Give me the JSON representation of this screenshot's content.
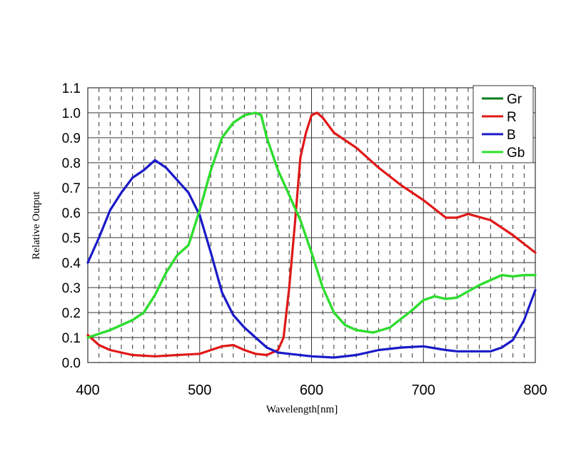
{
  "chart_data": {
    "type": "line",
    "title": "",
    "xlabel": "Wavelength[nm]",
    "ylabel": "Relative Output",
    "xlim": [
      400,
      800
    ],
    "ylim": [
      0,
      1.1
    ],
    "xticks": [
      "400",
      "500",
      "600",
      "700",
      "800"
    ],
    "yticks": [
      "0.0",
      "0.1",
      "0.2",
      "0.3",
      "0.4",
      "0.5",
      "0.6",
      "0.7",
      "0.8",
      "0.9",
      "1.0",
      "1.1"
    ],
    "grid": true,
    "legend_position": "top-right",
    "series": [
      {
        "name": "Gr",
        "color": "#0a7a1a",
        "x": [
          400,
          420,
          440,
          450,
          460,
          470,
          480,
          490,
          500,
          510,
          520,
          530,
          540,
          550,
          555,
          560,
          570,
          580,
          590,
          600,
          610,
          620,
          630,
          640,
          655,
          670,
          690,
          700,
          710,
          720,
          730,
          750,
          770,
          780,
          790,
          800
        ],
        "y": [
          0.1,
          0.13,
          0.17,
          0.2,
          0.27,
          0.36,
          0.43,
          0.47,
          0.61,
          0.77,
          0.9,
          0.96,
          0.99,
          1.0,
          0.99,
          0.9,
          0.77,
          0.67,
          0.57,
          0.44,
          0.3,
          0.2,
          0.15,
          0.13,
          0.12,
          0.14,
          0.21,
          0.25,
          0.265,
          0.255,
          0.26,
          0.31,
          0.35,
          0.345,
          0.35,
          0.35
        ]
      },
      {
        "name": "R",
        "color": "#e01818",
        "x": [
          400,
          410,
          420,
          440,
          460,
          480,
          500,
          510,
          520,
          530,
          540,
          550,
          560,
          570,
          575,
          580,
          585,
          590,
          595,
          600,
          605,
          610,
          620,
          640,
          660,
          680,
          700,
          720,
          730,
          740,
          760,
          780,
          800
        ],
        "y": [
          0.11,
          0.07,
          0.05,
          0.03,
          0.025,
          0.03,
          0.035,
          0.05,
          0.065,
          0.07,
          0.05,
          0.035,
          0.03,
          0.05,
          0.1,
          0.3,
          0.55,
          0.82,
          0.92,
          0.99,
          1.0,
          0.98,
          0.92,
          0.86,
          0.78,
          0.71,
          0.65,
          0.58,
          0.58,
          0.595,
          0.57,
          0.51,
          0.44
        ]
      },
      {
        "name": "B",
        "color": "#1a1ac8",
        "x": [
          400,
          410,
          420,
          430,
          440,
          450,
          460,
          470,
          480,
          490,
          500,
          510,
          520,
          530,
          540,
          550,
          560,
          570,
          580,
          600,
          620,
          640,
          660,
          680,
          700,
          720,
          730,
          760,
          770,
          780,
          790,
          800
        ],
        "y": [
          0.4,
          0.5,
          0.61,
          0.68,
          0.74,
          0.77,
          0.81,
          0.78,
          0.73,
          0.68,
          0.59,
          0.44,
          0.28,
          0.19,
          0.14,
          0.1,
          0.06,
          0.04,
          0.035,
          0.025,
          0.02,
          0.03,
          0.05,
          0.06,
          0.065,
          0.05,
          0.045,
          0.045,
          0.06,
          0.09,
          0.17,
          0.29
        ]
      },
      {
        "name": "Gb",
        "color": "#2de02d",
        "x": [
          400,
          420,
          440,
          450,
          460,
          470,
          480,
          490,
          500,
          510,
          520,
          530,
          540,
          550,
          555,
          560,
          570,
          580,
          590,
          600,
          610,
          620,
          630,
          640,
          655,
          670,
          690,
          700,
          710,
          720,
          730,
          750,
          770,
          780,
          790,
          800
        ],
        "y": [
          0.1,
          0.13,
          0.17,
          0.2,
          0.27,
          0.36,
          0.43,
          0.47,
          0.61,
          0.77,
          0.9,
          0.96,
          0.99,
          1.0,
          0.99,
          0.9,
          0.77,
          0.67,
          0.57,
          0.44,
          0.3,
          0.2,
          0.15,
          0.13,
          0.12,
          0.14,
          0.21,
          0.25,
          0.265,
          0.255,
          0.26,
          0.31,
          0.35,
          0.345,
          0.35,
          0.35
        ]
      }
    ]
  }
}
